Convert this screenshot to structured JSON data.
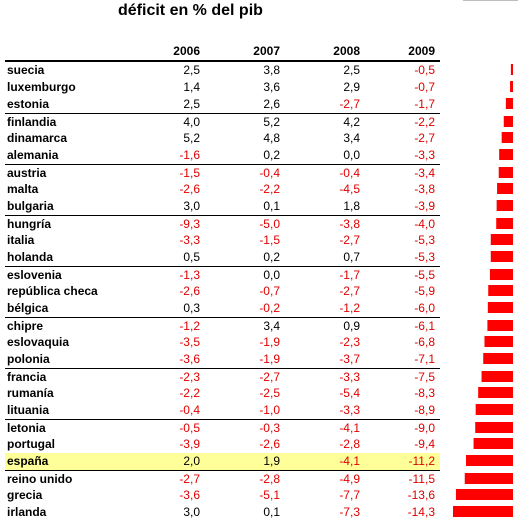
{
  "chart_data": {
    "type": "table",
    "title": "déficit en % del pib",
    "columns": [
      "2006",
      "2007",
      "2008",
      "2009"
    ],
    "rows": [
      {
        "country": "suecia",
        "values": [
          "2,5",
          "3,8",
          "2,5",
          "-0,5"
        ]
      },
      {
        "country": "luxemburgo",
        "values": [
          "1,4",
          "3,6",
          "2,9",
          "-0,7"
        ]
      },
      {
        "country": "estonia",
        "values": [
          "2,5",
          "2,6",
          "-2,7",
          "-1,7"
        ]
      },
      {
        "country": "finlandia",
        "values": [
          "4,0",
          "5,2",
          "4,2",
          "-2,2"
        ]
      },
      {
        "country": "dinamarca",
        "values": [
          "5,2",
          "4,8",
          "3,4",
          "-2,7"
        ]
      },
      {
        "country": "alemania",
        "values": [
          "-1,6",
          "0,2",
          "0,0",
          "-3,3"
        ]
      },
      {
        "country": "austria",
        "values": [
          "-1,5",
          "-0,4",
          "-0,4",
          "-3,4"
        ]
      },
      {
        "country": "malta",
        "values": [
          "-2,6",
          "-2,2",
          "-4,5",
          "-3,8"
        ]
      },
      {
        "country": "bulgaria",
        "values": [
          "3,0",
          "0,1",
          "1,8",
          "-3,9"
        ]
      },
      {
        "country": "hungría",
        "values": [
          "-9,3",
          "-5,0",
          "-3,8",
          "-4,0"
        ]
      },
      {
        "country": "italia",
        "values": [
          "-3,3",
          "-1,5",
          "-2,7",
          "-5,3"
        ]
      },
      {
        "country": "holanda",
        "values": [
          "0,5",
          "0,2",
          "0,7",
          "-5,3"
        ]
      },
      {
        "country": "eslovenia",
        "values": [
          "-1,3",
          "0,0",
          "-1,7",
          "-5,5"
        ]
      },
      {
        "country": "república checa",
        "values": [
          "-2,6",
          "-0,7",
          "-2,7",
          "-5,9"
        ]
      },
      {
        "country": "bélgica",
        "values": [
          "0,3",
          "-0,2",
          "-1,2",
          "-6,0"
        ]
      },
      {
        "country": "chipre",
        "values": [
          "-1,2",
          "3,4",
          "0,9",
          "-6,1"
        ]
      },
      {
        "country": "eslovaquia",
        "values": [
          "-3,5",
          "-1,9",
          "-2,3",
          "-6,8"
        ]
      },
      {
        "country": "polonia",
        "values": [
          "-3,6",
          "-1,9",
          "-3,7",
          "-7,1"
        ]
      },
      {
        "country": "francia",
        "values": [
          "-2,3",
          "-2,7",
          "-3,3",
          "-7,5"
        ]
      },
      {
        "country": "rumanía",
        "values": [
          "-2,2",
          "-2,5",
          "-5,4",
          "-8,3"
        ]
      },
      {
        "country": "lituania",
        "values": [
          "-0,4",
          "-1,0",
          "-3,3",
          "-8,9"
        ]
      },
      {
        "country": "letonia",
        "values": [
          "-0,5",
          "-0,3",
          "-4,1",
          "-9,0"
        ]
      },
      {
        "country": "portugal",
        "values": [
          "-3,9",
          "-2,6",
          "-2,8",
          "-9,4"
        ]
      },
      {
        "country": "españa",
        "values": [
          "2,0",
          "1,9",
          "-4,1",
          "-11,2"
        ]
      },
      {
        "country": "reino unido",
        "values": [
          "-2,7",
          "-2,8",
          "-4,9",
          "-11,5"
        ]
      },
      {
        "country": "grecia",
        "values": [
          "-3,6",
          "-5,1",
          "-7,7",
          "-13,6"
        ]
      },
      {
        "country": "irlanda",
        "values": [
          "3,0",
          "0,1",
          "-7,3",
          "-14,3"
        ]
      }
    ],
    "bar_series": {
      "x": [
        "suecia",
        "luxemburgo",
        "estonia",
        "finlandia",
        "dinamarca",
        "alemania",
        "austria",
        "malta",
        "bulgaria",
        "hungría",
        "italia",
        "holanda",
        "eslovenia",
        "república checa",
        "bélgica",
        "chipre",
        "eslovaquia",
        "polonia",
        "francia",
        "rumanía",
        "lituania",
        "letonia",
        "portugal",
        "españa",
        "reino unido",
        "grecia",
        "irlanda"
      ],
      "values": [
        -0.5,
        -0.7,
        -1.7,
        -2.2,
        -2.7,
        -3.3,
        -3.4,
        -3.8,
        -3.9,
        -4.0,
        -5.3,
        -5.3,
        -5.5,
        -5.9,
        -6.0,
        -6.1,
        -6.8,
        -7.1,
        -7.5,
        -8.3,
        -8.9,
        -9.0,
        -9.4,
        -11.2,
        -11.5,
        -13.6,
        -14.3
      ]
    },
    "highlight_country": "españa",
    "colors": {
      "negative": "#e00000",
      "bar": "#ff0000",
      "highlight": "#ffff99"
    }
  }
}
